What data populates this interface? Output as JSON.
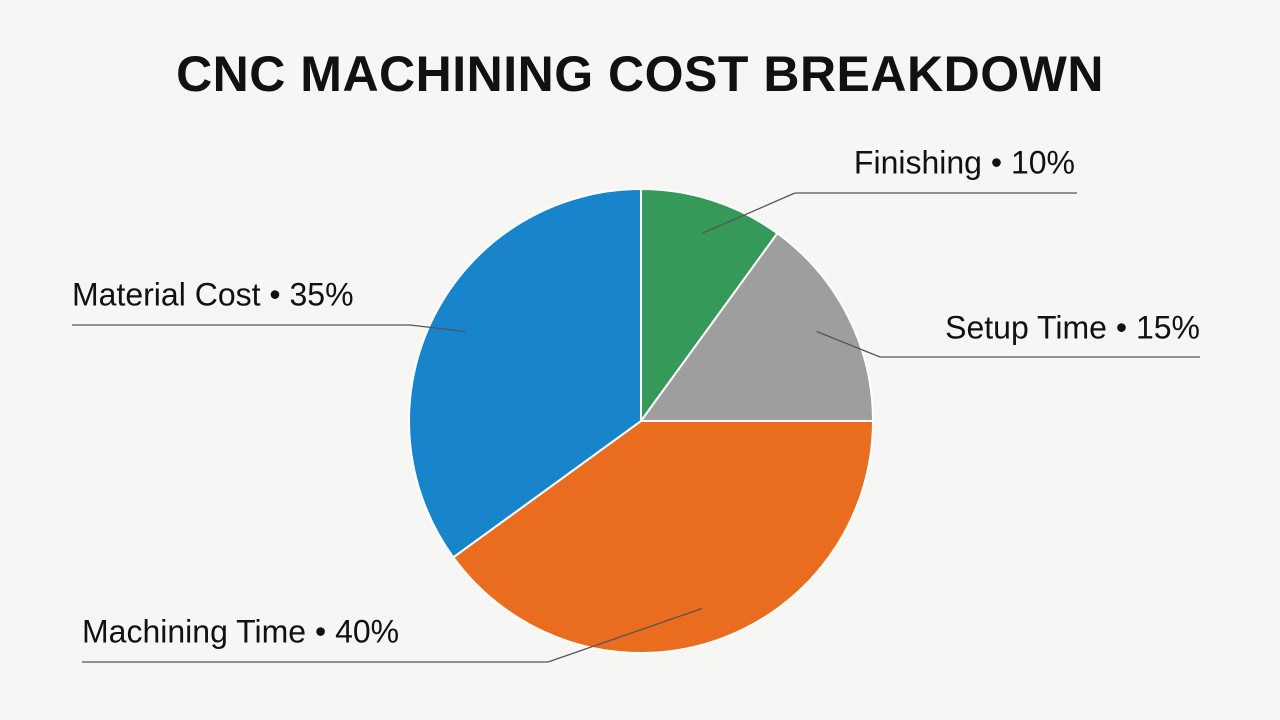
{
  "chart_data": {
    "type": "pie",
    "title": "CNC MACHINING COST BREAKDOWN",
    "values": [
      10,
      15,
      40,
      35
    ],
    "value_labels": [
      "Finishing • 10%",
      "Setup Time • 15%",
      "Machining Time • 40%",
      "Material Cost • 35%"
    ],
    "colors": [
      "#35995a",
      "#9e9e9e",
      "#ea6d1f",
      "#1784cb"
    ]
  }
}
